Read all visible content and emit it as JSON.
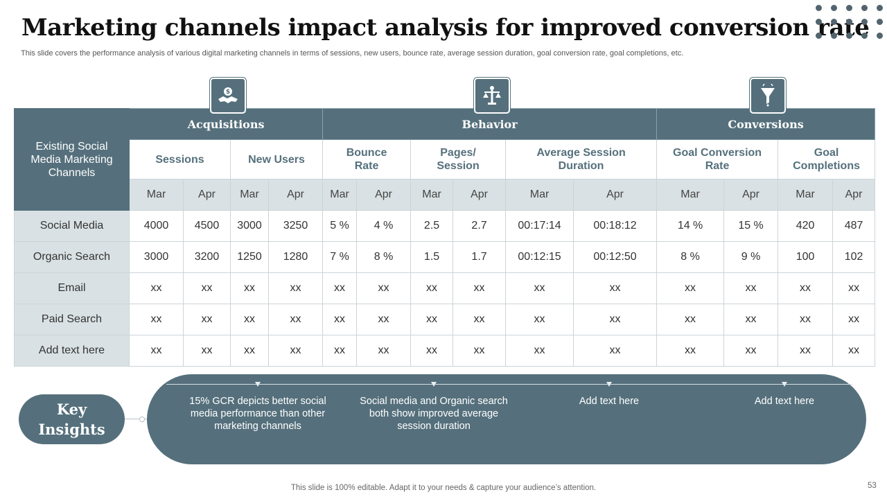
{
  "title": "Marketing channels impact analysis for improved conversion rate",
  "subtitle": "This slide covers the performance analysis of various digital marketing channels in terms of sessions, new users, bounce rate, average session duration, goal conversion rate, goal completions, etc.",
  "colors": {
    "primary": "#55707c",
    "light": "#d9e1e4"
  },
  "icons": [
    "handshake-icon",
    "scale-balance-icon",
    "funnel-icon"
  ],
  "table": {
    "corner_label": "Existing Social Media Marketing Channels",
    "groups": [
      "Acquisitions",
      "Behavior",
      "Conversions"
    ],
    "metrics": [
      "Sessions",
      "New Users",
      "Bounce Rate",
      "Pages/ Session",
      "Average Session Duration",
      "Goal Conversion Rate",
      "Goal Completions"
    ],
    "months": [
      "Mar",
      "Apr",
      "Mar",
      "Apr",
      "Mar",
      "Apr",
      "Mar",
      "Apr",
      "Mar",
      "Apr",
      "Mar",
      "Apr",
      "Mar",
      "Apr"
    ],
    "rows": [
      {
        "label": "Social Media",
        "values": [
          "4000",
          "4500",
          "3000",
          "3250",
          "5 %",
          "4 %",
          "2.5",
          "2.7",
          "00:17:14",
          "00:18:12",
          "14 %",
          "15 %",
          "420",
          "487"
        ]
      },
      {
        "label": "Organic Search",
        "values": [
          "3000",
          "3200",
          "1250",
          "1280",
          "7 %",
          "8 %",
          "1.5",
          "1.7",
          "00:12:15",
          "00:12:50",
          "8 %",
          "9 %",
          "100",
          "102"
        ]
      },
      {
        "label": "Email",
        "values": [
          "xx",
          "xx",
          "xx",
          "xx",
          "xx",
          "xx",
          "xx",
          "xx",
          "xx",
          "xx",
          "xx",
          "xx",
          "xx",
          "xx"
        ]
      },
      {
        "label": "Paid Search",
        "values": [
          "xx",
          "xx",
          "xx",
          "xx",
          "xx",
          "xx",
          "xx",
          "xx",
          "xx",
          "xx",
          "xx",
          "xx",
          "xx",
          "xx"
        ]
      },
      {
        "label": "Add text here",
        "values": [
          "xx",
          "xx",
          "xx",
          "xx",
          "xx",
          "xx",
          "xx",
          "xx",
          "xx",
          "xx",
          "xx",
          "xx",
          "xx",
          "xx"
        ]
      }
    ]
  },
  "insights": {
    "label": "Key Insights",
    "items": [
      "15% GCR depicts better social media performance than other marketing channels",
      "Social media and Organic search both show improved average session duration",
      "Add text here",
      "Add text here"
    ]
  },
  "footer": "This slide is 100% editable. Adapt it to your needs & capture your audience’s attention.",
  "page_number": "53"
}
